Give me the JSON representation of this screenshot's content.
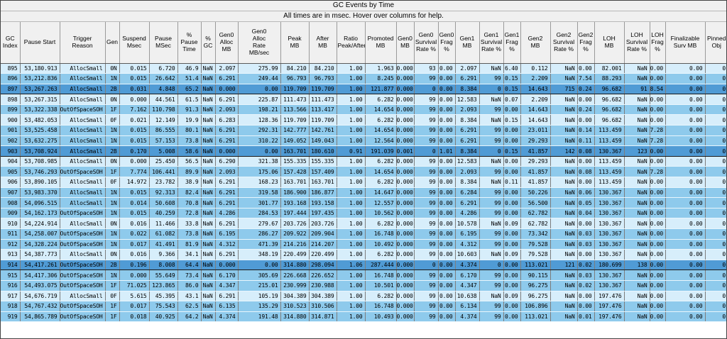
{
  "title": "GC Events by Time",
  "subtitle": "All times are in msec. Hover over columns for help.",
  "colors": {
    "gen0_row": "#d7eefb",
    "gen1_row": "#8ecaec",
    "gen2_row": "#509bd5",
    "header_bg": "#f0f0f0",
    "grid_line": "#7d7d7d"
  },
  "table": {
    "columns": [
      {
        "label": "GC\nIndex",
        "width": 27
      },
      {
        "label": "Pause Start",
        "width": 56
      },
      {
        "label": "Trigger\nReason",
        "width": 64
      },
      {
        "label": "Gen",
        "width": 20
      },
      {
        "label": "Suspend\nMsec",
        "width": 42
      },
      {
        "label": "Pause\nMSec",
        "width": 40
      },
      {
        "label": "%\nPause\nTime",
        "width": 33
      },
      {
        "label": "%\nGC",
        "width": 20
      },
      {
        "label": "Gen0\nAlloc\nMB",
        "width": 32
      },
      {
        "label": "Gen0\nAlloc\nRate\nMB/sec",
        "width": 60
      },
      {
        "label": "Peak\nMB",
        "width": 40
      },
      {
        "label": "After\nMB",
        "width": 39
      },
      {
        "label": "Ratio\nPeak/After",
        "width": 40
      },
      {
        "label": "Promoted\nMB",
        "width": 44
      },
      {
        "label": "Gen0\nMB",
        "width": 25
      },
      {
        "label": "Gen0\nSurvival\nRate %",
        "width": 34
      },
      {
        "label": "Gen0\nFrag\n%",
        "width": 24
      },
      {
        "label": "Gen1\nMB",
        "width": 34
      },
      {
        "label": "Gen1\nSurvival\nRate %",
        "width": 34
      },
      {
        "label": "Gen1\nFrag\n%",
        "width": 24
      },
      {
        "label": "Gen2\nMB",
        "width": 42
      },
      {
        "label": "Gen2\nSurvival\nRate %",
        "width": 38
      },
      {
        "label": "Gen2\nFrag\n%",
        "width": 24
      },
      {
        "label": "LOH\nMB",
        "width": 42
      },
      {
        "label": "LOH\nSurvival\nRate %",
        "width": 36
      },
      {
        "label": "LOH\nFrag\n%",
        "width": 22
      },
      {
        "label": "Finalizable\nSurv MB",
        "width": 56
      },
      {
        "label": "Pinned\nObj",
        "width": 32
      }
    ],
    "rows": [
      {
        "tone": "0",
        "cells": [
          "895",
          "53,180.913",
          "AllocSmall",
          "0N",
          "0.015",
          "6.720",
          "46.9",
          "NaN",
          "2.097",
          "275.99",
          "84.210",
          "84.210",
          "1.00",
          "1.963",
          "0.000",
          "93",
          "0.00",
          "2.097",
          "NaN",
          "6.40",
          "0.112",
          "NaN",
          "0.00",
          "82.001",
          "NaN",
          "0.00",
          "0.00",
          "0"
        ]
      },
      {
        "tone": "1",
        "cells": [
          "896",
          "53,212.836",
          "AllocSmall",
          "1N",
          "0.015",
          "26.642",
          "51.4",
          "NaN",
          "6.291",
          "249.44",
          "96.793",
          "96.793",
          "1.00",
          "8.245",
          "0.000",
          "99",
          "0.00",
          "6.291",
          "99",
          "0.15",
          "2.209",
          "NaN",
          "7.54",
          "88.293",
          "NaN",
          "0.00",
          "0.00",
          "0"
        ]
      },
      {
        "tone": "2",
        "cells": [
          "897",
          "53,267.263",
          "AllocSmall",
          "2B",
          "0.031",
          "4.848",
          "65.2",
          "NaN",
          "0.000",
          "0.00",
          "119.709",
          "119.709",
          "1.00",
          "121.877",
          "0.000",
          "0",
          "0.00",
          "8.384",
          "0",
          "0.15",
          "14.643",
          "715",
          "0.24",
          "96.682",
          "91",
          "8.54",
          "0.00",
          "0"
        ]
      },
      {
        "tone": "0",
        "cells": [
          "898",
          "53,267.315",
          "AllocSmall",
          "0N",
          "0.000",
          "44.561",
          "61.5",
          "NaN",
          "6.291",
          "225.87",
          "111.473",
          "111.473",
          "1.00",
          "6.282",
          "0.000",
          "99",
          "0.00",
          "12.583",
          "NaN",
          "0.07",
          "2.209",
          "NaN",
          "0.00",
          "96.682",
          "NaN",
          "0.00",
          "0.00",
          "0"
        ]
      },
      {
        "tone": "1",
        "cells": [
          "899",
          "53,322.338",
          "OutOfSpaceSOH",
          "1F",
          "7.162",
          "110.798",
          "91.3",
          "NaN",
          "2.093",
          "198.21",
          "113.566",
          "113.417",
          "1.00",
          "14.654",
          "0.000",
          "99",
          "0.00",
          "2.093",
          "99",
          "0.00",
          "14.643",
          "NaN",
          "0.24",
          "96.682",
          "NaN",
          "0.00",
          "0.00",
          "0"
        ]
      },
      {
        "tone": "0",
        "cells": [
          "900",
          "53,482.053",
          "AllocSmall",
          "0F",
          "0.021",
          "12.149",
          "19.9",
          "NaN",
          "6.283",
          "128.36",
          "119.709",
          "119.709",
          "1.00",
          "6.282",
          "0.000",
          "99",
          "0.00",
          "8.384",
          "NaN",
          "0.15",
          "14.643",
          "NaN",
          "0.00",
          "96.682",
          "NaN",
          "0.00",
          "0.00",
          "0"
        ]
      },
      {
        "tone": "1",
        "cells": [
          "901",
          "53,525.458",
          "AllocSmall",
          "1N",
          "0.015",
          "86.555",
          "80.1",
          "NaN",
          "6.291",
          "292.31",
          "142.777",
          "142.761",
          "1.00",
          "14.654",
          "0.000",
          "99",
          "0.00",
          "6.291",
          "99",
          "0.00",
          "23.011",
          "NaN",
          "0.14",
          "113.459",
          "NaN",
          "7.28",
          "0.00",
          "0"
        ]
      },
      {
        "tone": "1",
        "cells": [
          "902",
          "53,632.275",
          "AllocSmall",
          "1N",
          "0.015",
          "57.153",
          "73.8",
          "NaN",
          "6.291",
          "310.22",
          "149.052",
          "149.043",
          "1.00",
          "12.564",
          "0.000",
          "99",
          "0.00",
          "6.291",
          "99",
          "0.00",
          "29.293",
          "NaN",
          "0.11",
          "113.459",
          "NaN",
          "7.28",
          "0.00",
          "0"
        ]
      },
      {
        "tone": "2",
        "cells": [
          "903",
          "53,708.924",
          "AllocSmall",
          "2B",
          "0.170",
          "5.008",
          "58.6",
          "NaN",
          "0.000",
          "0.00",
          "163.701",
          "180.610",
          "0.91",
          "191.039",
          "0.001",
          "0",
          "1.01",
          "8.384",
          "0",
          "0.15",
          "41.857",
          "142",
          "0.08",
          "130.367",
          "123",
          "0.00",
          "0.00",
          "0"
        ]
      },
      {
        "tone": "0",
        "cells": [
          "904",
          "53,708.985",
          "AllocSmall",
          "0N",
          "0.000",
          "25.450",
          "56.5",
          "NaN",
          "6.290",
          "321.38",
          "155.335",
          "155.335",
          "1.00",
          "6.282",
          "0.000",
          "99",
          "0.00",
          "12.583",
          "NaN",
          "0.00",
          "29.293",
          "NaN",
          "0.00",
          "113.459",
          "NaN",
          "0.00",
          "0.00",
          "0"
        ]
      },
      {
        "tone": "1",
        "cells": [
          "905",
          "53,746.293",
          "OutOfSpaceSOH",
          "1F",
          "7.774",
          "106.441",
          "89.9",
          "NaN",
          "2.093",
          "175.06",
          "157.428",
          "157.409",
          "1.00",
          "14.654",
          "0.000",
          "99",
          "0.00",
          "2.093",
          "99",
          "0.00",
          "41.857",
          "NaN",
          "0.08",
          "113.459",
          "NaN",
          "7.28",
          "0.00",
          "0"
        ]
      },
      {
        "tone": "0",
        "cells": [
          "906",
          "53,890.105",
          "AllocSmall",
          "0F",
          "14.972",
          "23.782",
          "38.9",
          "NaN",
          "6.291",
          "168.23",
          "163.701",
          "163.701",
          "1.00",
          "6.282",
          "0.000",
          "99",
          "0.00",
          "8.384",
          "NaN",
          "0.11",
          "41.857",
          "NaN",
          "0.00",
          "113.459",
          "NaN",
          "0.00",
          "0.00",
          "0"
        ]
      },
      {
        "tone": "1",
        "cells": [
          "907",
          "53,983.370",
          "AllocSmall",
          "1N",
          "0.015",
          "92.313",
          "82.4",
          "NaN",
          "6.291",
          "319.58",
          "186.900",
          "186.877",
          "1.00",
          "14.647",
          "0.000",
          "99",
          "0.00",
          "6.284",
          "99",
          "0.00",
          "50.226",
          "NaN",
          "0.06",
          "130.367",
          "NaN",
          "0.00",
          "0.00",
          "0"
        ]
      },
      {
        "tone": "1",
        "cells": [
          "908",
          "54,096.515",
          "AllocSmall",
          "1N",
          "0.014",
          "50.608",
          "70.8",
          "NaN",
          "6.291",
          "301.77",
          "193.168",
          "193.158",
          "1.00",
          "12.557",
          "0.000",
          "99",
          "0.00",
          "6.291",
          "99",
          "0.00",
          "56.500",
          "NaN",
          "0.05",
          "130.367",
          "NaN",
          "0.00",
          "0.00",
          "0"
        ]
      },
      {
        "tone": "1",
        "cells": [
          "909",
          "54,162.173",
          "OutOfSpaceSOH",
          "1N",
          "0.015",
          "40.259",
          "72.8",
          "NaN",
          "4.286",
          "284.53",
          "197.444",
          "197.435",
          "1.00",
          "10.562",
          "0.000",
          "99",
          "0.00",
          "4.286",
          "99",
          "0.00",
          "62.782",
          "NaN",
          "0.04",
          "130.367",
          "NaN",
          "0.00",
          "0.00",
          "0"
        ]
      },
      {
        "tone": "0",
        "cells": [
          "910",
          "54,224.914",
          "AllocSmall",
          "0N",
          "0.016",
          "11.466",
          "33.8",
          "NaN",
          "6.291",
          "279.67",
          "203.726",
          "203.726",
          "1.00",
          "6.282",
          "0.000",
          "99",
          "0.00",
          "10.578",
          "NaN",
          "0.09",
          "62.782",
          "NaN",
          "0.00",
          "130.367",
          "NaN",
          "0.00",
          "0.00",
          "0"
        ]
      },
      {
        "tone": "1",
        "cells": [
          "911",
          "54,258.007",
          "OutOfSpaceSOH",
          "1N",
          "0.022",
          "61.082",
          "73.8",
          "NaN",
          "6.195",
          "286.27",
          "209.922",
          "209.904",
          "1.00",
          "16.748",
          "0.000",
          "99",
          "0.00",
          "6.195",
          "99",
          "0.00",
          "73.342",
          "NaN",
          "0.03",
          "130.367",
          "NaN",
          "0.00",
          "0.00",
          "0"
        ]
      },
      {
        "tone": "1",
        "cells": [
          "912",
          "54,328.224",
          "OutOfSpaceSOH",
          "1N",
          "0.017",
          "41.491",
          "81.9",
          "NaN",
          "4.312",
          "471.39",
          "214.216",
          "214.207",
          "1.00",
          "10.492",
          "0.000",
          "99",
          "0.00",
          "4.312",
          "99",
          "0.00",
          "79.528",
          "NaN",
          "0.03",
          "130.367",
          "NaN",
          "0.00",
          "0.00",
          "0"
        ]
      },
      {
        "tone": "0",
        "cells": [
          "913",
          "54,387.773",
          "AllocSmall",
          "0N",
          "0.016",
          "9.366",
          "34.1",
          "NaN",
          "6.291",
          "348.19",
          "220.499",
          "220.499",
          "1.00",
          "6.282",
          "0.000",
          "99",
          "0.00",
          "10.603",
          "NaN",
          "0.09",
          "79.528",
          "NaN",
          "0.00",
          "130.367",
          "NaN",
          "0.00",
          "0.00",
          "0"
        ]
      },
      {
        "tone": "2",
        "cells": [
          "914",
          "54,417.261",
          "OutOfSpaceSOH",
          "2B",
          "0.196",
          "8.008",
          "64.4",
          "NaN",
          "0.000",
          "0.00",
          "314.880",
          "298.094",
          "1.06",
          "287.444",
          "0.000",
          "0",
          "0.00",
          "4.374",
          "0",
          "0.00",
          "113.021",
          "121",
          "0.02",
          "180.699",
          "138",
          "0.00",
          "0.00",
          "0"
        ]
      },
      {
        "tone": "1",
        "cells": [
          "915",
          "54,417.306",
          "OutOfSpaceSOH",
          "1N",
          "0.000",
          "55.649",
          "73.4",
          "NaN",
          "6.170",
          "305.69",
          "226.668",
          "226.652",
          "1.00",
          "16.748",
          "0.000",
          "99",
          "0.00",
          "6.170",
          "99",
          "0.00",
          "90.115",
          "NaN",
          "0.03",
          "130.367",
          "NaN",
          "0.00",
          "0.00",
          "0"
        ]
      },
      {
        "tone": "1",
        "cells": [
          "916",
          "54,493.075",
          "OutOfSpaceSOH",
          "1F",
          "71.025",
          "123.865",
          "86.0",
          "NaN",
          "4.347",
          "215.01",
          "230.999",
          "230.988",
          "1.00",
          "10.501",
          "0.000",
          "99",
          "0.00",
          "4.347",
          "99",
          "0.00",
          "96.275",
          "NaN",
          "0.02",
          "130.367",
          "NaN",
          "0.00",
          "0.00",
          "0"
        ]
      },
      {
        "tone": "0",
        "cells": [
          "917",
          "54,676.719",
          "AllocSmall",
          "0F",
          "5.615",
          "45.395",
          "43.1",
          "NaN",
          "6.291",
          "105.19",
          "304.389",
          "304.389",
          "1.00",
          "6.282",
          "0.000",
          "99",
          "0.00",
          "10.638",
          "NaN",
          "0.09",
          "96.275",
          "NaN",
          "0.00",
          "197.476",
          "NaN",
          "0.00",
          "0.00",
          "0"
        ]
      },
      {
        "tone": "1",
        "cells": [
          "918",
          "54,767.432",
          "OutOfSpaceSOH",
          "1F",
          "0.017",
          "75.543",
          "62.5",
          "NaN",
          "6.135",
          "135.29",
          "310.523",
          "310.506",
          "1.00",
          "16.748",
          "0.000",
          "99",
          "0.00",
          "6.134",
          "99",
          "0.00",
          "106.896",
          "NaN",
          "0.00",
          "197.476",
          "NaN",
          "0.00",
          "0.00",
          "0"
        ]
      },
      {
        "tone": "1",
        "cells": [
          "919",
          "54,865.789",
          "OutOfSpaceSOH",
          "1F",
          "0.018",
          "40.925",
          "64.2",
          "NaN",
          "4.374",
          "191.48",
          "314.880",
          "314.871",
          "1.00",
          "10.493",
          "0.000",
          "99",
          "0.00",
          "4.374",
          "99",
          "0.00",
          "113.021",
          "NaN",
          "0.01",
          "197.476",
          "NaN",
          "0.00",
          "0.00",
          "0"
        ]
      }
    ]
  }
}
